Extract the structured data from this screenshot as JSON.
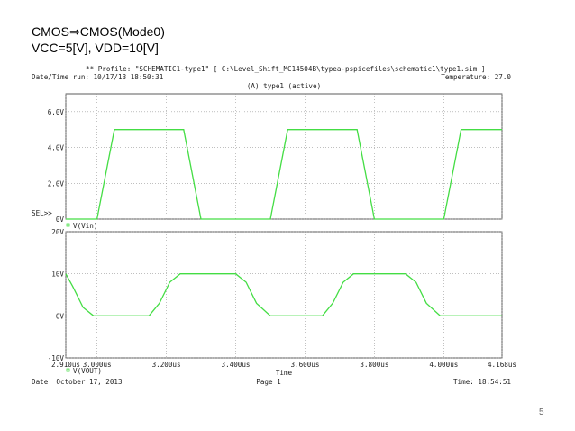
{
  "slide": {
    "title": "CMOS⇒CMOS(Mode0)",
    "subtitle": "VCC=5[V], VDD=10[V]",
    "page_number": "5"
  },
  "header": {
    "profile": "** Profile: \"SCHEMATIC1-type1\"  [ C:\\Level_Shift_MC14504B\\typea-pspicefiles\\schematic1\\type1.sim ]",
    "run": "Date/Time run: 10/17/13  18:50:31",
    "temperature": "Temperature: 27.0",
    "section": "(A) type1 (active)"
  },
  "footer": {
    "date": "Date: October 17, 2013",
    "page": "Page 1",
    "time": "Time: 18:54:51"
  },
  "chart_data": [
    {
      "type": "line",
      "annotation": "SEL>>",
      "x": [
        2.91,
        3.0,
        3.05,
        3.25,
        3.3,
        3.5,
        3.55,
        3.75,
        3.8,
        4.0,
        4.05,
        4.168
      ],
      "series": [
        {
          "name": "V(Vin)",
          "color": "#44dd44",
          "values": [
            0,
            0,
            5,
            5,
            0,
            0,
            5,
            5,
            0,
            0,
            5,
            5
          ]
        }
      ],
      "xlim": [
        2.91,
        4.168
      ],
      "ylim": [
        0,
        7
      ],
      "yticks": [
        {
          "value": 0,
          "label": "0V"
        },
        {
          "value": 2,
          "label": "2.0V"
        },
        {
          "value": 4,
          "label": "4.0V"
        },
        {
          "value": 6,
          "label": "6.0V"
        }
      ],
      "grid": true
    },
    {
      "type": "line",
      "x_label": "Time",
      "x": [
        2.91,
        2.93,
        2.96,
        2.99,
        3.15,
        3.18,
        3.21,
        3.24,
        3.4,
        3.43,
        3.46,
        3.5,
        3.65,
        3.68,
        3.71,
        3.74,
        3.89,
        3.92,
        3.95,
        3.99,
        4.168
      ],
      "series": [
        {
          "name": "V(VOUT)",
          "color": "#44dd44",
          "values": [
            10,
            7,
            2,
            0,
            0,
            3,
            8,
            10,
            10,
            8,
            3,
            0,
            0,
            3,
            8,
            10,
            10,
            8,
            3,
            0,
            0
          ]
        }
      ],
      "xlim": [
        2.91,
        4.168
      ],
      "ylim": [
        -10,
        20
      ],
      "xticks": [
        {
          "value": 2.91,
          "label": "2.910us"
        },
        {
          "value": 3.0,
          "label": "3.000us"
        },
        {
          "value": 3.2,
          "label": "3.200us"
        },
        {
          "value": 3.4,
          "label": "3.400us"
        },
        {
          "value": 3.6,
          "label": "3.600us"
        },
        {
          "value": 3.8,
          "label": "3.800us"
        },
        {
          "value": 4.0,
          "label": "4.000us"
        },
        {
          "value": 4.168,
          "label": "4.168us"
        }
      ],
      "yticks": [
        {
          "value": -10,
          "label": "-10V"
        },
        {
          "value": 0,
          "label": "0V"
        },
        {
          "value": 10,
          "label": "10V"
        },
        {
          "value": 20,
          "label": "20V"
        }
      ],
      "grid": true
    }
  ]
}
